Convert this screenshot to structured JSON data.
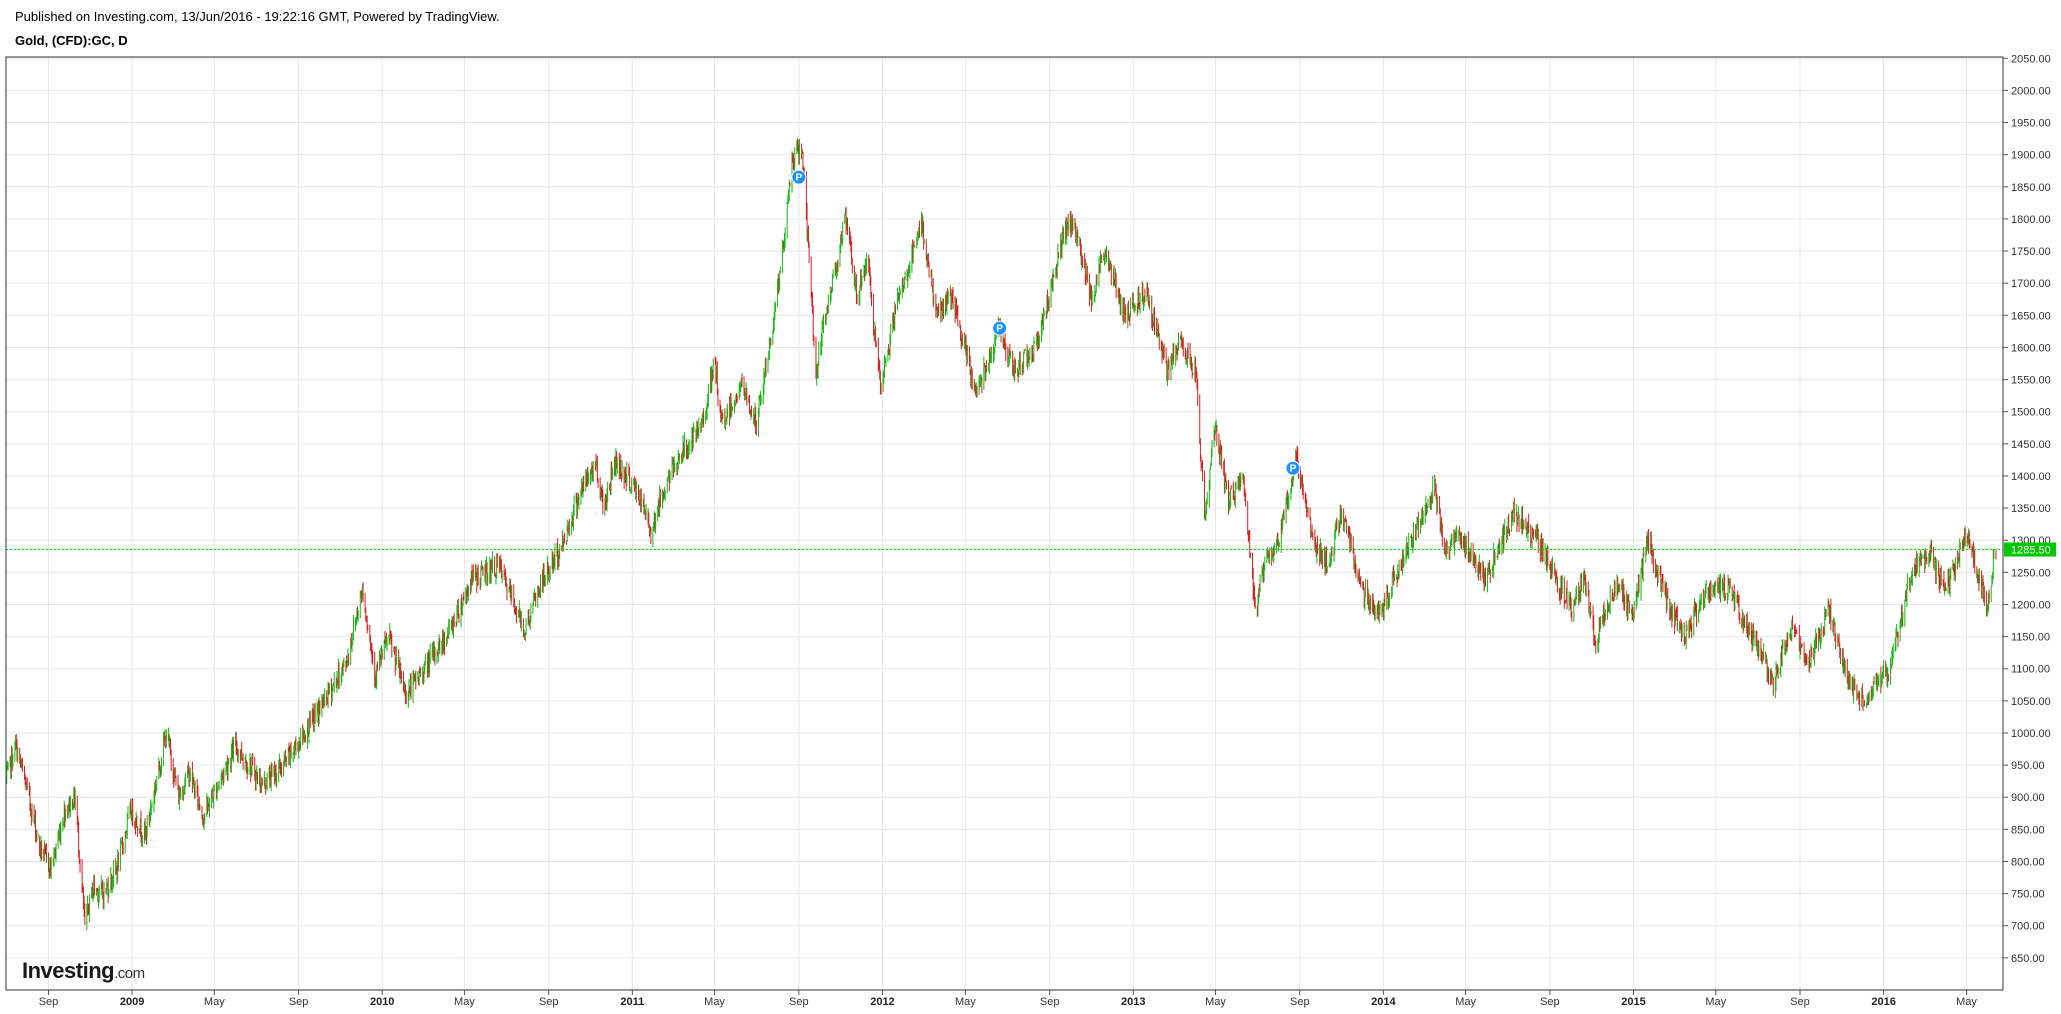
{
  "header": {
    "published": "Published on Investing.com, 13/Jun/2016 - 19:22:16 GMT, Powered by TradingView.",
    "symbol": "Gold, (CFD):GC, D"
  },
  "logo": {
    "brand": "Investing",
    "suffix": ".com"
  },
  "colors": {
    "up": "#16b816",
    "down": "#d62020",
    "grid": "#e6e6e6",
    "frame": "#333333",
    "price_line": "#00e000",
    "price_badge": "#00c800",
    "marker": "#1e90ff"
  },
  "chart_data": {
    "type": "line",
    "style": "daily OHLC bars, green up / red down",
    "grid": true,
    "x_range": [
      "2008-07-01",
      "2016-06-13"
    ],
    "ylim": [
      600,
      2052
    ],
    "y_ticks": [
      650,
      700,
      750,
      800,
      850,
      900,
      950,
      1000,
      1050,
      1100,
      1150,
      1200,
      1250,
      1300,
      1350,
      1400,
      1450,
      1500,
      1550,
      1600,
      1650,
      1700,
      1750,
      1800,
      1850,
      1900,
      1950,
      2000,
      2050
    ],
    "y_tick_labels": [
      "650.00",
      "700.00",
      "750.00",
      "800.00",
      "850.00",
      "900.00",
      "950.00",
      "1000.00",
      "1050.00",
      "1100.00",
      "1150.00",
      "1200.00",
      "1250.00",
      "1300.00",
      "1350.00",
      "1400.00",
      "1450.00",
      "1500.00",
      "1550.00",
      "1600.00",
      "1650.00",
      "1700.00",
      "1750.00",
      "1800.00",
      "1850.00",
      "1900.00",
      "1950.00",
      "2000.00",
      "2050.00"
    ],
    "x_ticks": [
      {
        "date": "2008-09-01",
        "label": "Sep",
        "bold": false
      },
      {
        "date": "2009-01-01",
        "label": "2009",
        "bold": true
      },
      {
        "date": "2009-05-01",
        "label": "May",
        "bold": false
      },
      {
        "date": "2009-09-01",
        "label": "Sep",
        "bold": false
      },
      {
        "date": "2010-01-01",
        "label": "2010",
        "bold": true
      },
      {
        "date": "2010-05-01",
        "label": "May",
        "bold": false
      },
      {
        "date": "2010-09-01",
        "label": "Sep",
        "bold": false
      },
      {
        "date": "2011-01-01",
        "label": "2011",
        "bold": true
      },
      {
        "date": "2011-05-01",
        "label": "May",
        "bold": false
      },
      {
        "date": "2011-09-01",
        "label": "Sep",
        "bold": false
      },
      {
        "date": "2012-01-01",
        "label": "2012",
        "bold": true
      },
      {
        "date": "2012-05-01",
        "label": "May",
        "bold": false
      },
      {
        "date": "2012-09-01",
        "label": "Sep",
        "bold": false
      },
      {
        "date": "2013-01-01",
        "label": "2013",
        "bold": true
      },
      {
        "date": "2013-05-01",
        "label": "May",
        "bold": false
      },
      {
        "date": "2013-09-01",
        "label": "Sep",
        "bold": false
      },
      {
        "date": "2014-01-01",
        "label": "2014",
        "bold": true
      },
      {
        "date": "2014-05-01",
        "label": "May",
        "bold": false
      },
      {
        "date": "2014-09-01",
        "label": "Sep",
        "bold": false
      },
      {
        "date": "2015-01-01",
        "label": "2015",
        "bold": true
      },
      {
        "date": "2015-05-01",
        "label": "May",
        "bold": false
      },
      {
        "date": "2015-09-01",
        "label": "Sep",
        "bold": false
      },
      {
        "date": "2016-01-01",
        "label": "2016",
        "bold": true
      },
      {
        "date": "2016-05-01",
        "label": "May",
        "bold": false
      }
    ],
    "current_price": 1285.5,
    "current_price_label": "1285.50",
    "markers": [
      {
        "date": "2011-09-01",
        "price": 1865,
        "label": "P"
      },
      {
        "date": "2012-06-20",
        "price": 1630,
        "label": "P"
      },
      {
        "date": "2013-08-22",
        "price": 1412,
        "label": "P"
      }
    ],
    "series": [
      {
        "points": [
          [
            "2008-07-01",
            925
          ],
          [
            "2008-07-15",
            980
          ],
          [
            "2008-08-01",
            910
          ],
          [
            "2008-08-20",
            820
          ],
          [
            "2008-09-05",
            790
          ],
          [
            "2008-09-25",
            880
          ],
          [
            "2008-10-10",
            900
          ],
          [
            "2008-10-24",
            700
          ],
          [
            "2008-11-05",
            760
          ],
          [
            "2008-11-21",
            750
          ],
          [
            "2008-12-10",
            790
          ],
          [
            "2008-12-30",
            880
          ],
          [
            "2009-01-20",
            840
          ],
          [
            "2009-02-20",
            1000
          ],
          [
            "2009-03-10",
            900
          ],
          [
            "2009-03-25",
            940
          ],
          [
            "2009-04-15",
            870
          ],
          [
            "2009-06-01",
            980
          ],
          [
            "2009-07-10",
            920
          ],
          [
            "2009-08-10",
            950
          ],
          [
            "2009-09-10",
            1000
          ],
          [
            "2009-10-14",
            1060
          ],
          [
            "2009-11-10",
            1110
          ],
          [
            "2009-12-03",
            1225
          ],
          [
            "2009-12-22",
            1090
          ],
          [
            "2010-01-10",
            1150
          ],
          [
            "2010-02-05",
            1060
          ],
          [
            "2010-03-10",
            1110
          ],
          [
            "2010-04-10",
            1160
          ],
          [
            "2010-05-12",
            1240
          ],
          [
            "2010-06-20",
            1260
          ],
          [
            "2010-07-28",
            1160
          ],
          [
            "2010-08-20",
            1230
          ],
          [
            "2010-09-20",
            1290
          ],
          [
            "2010-10-15",
            1370
          ],
          [
            "2010-11-09",
            1420
          ],
          [
            "2010-11-20",
            1350
          ],
          [
            "2010-12-07",
            1425
          ],
          [
            "2011-01-10",
            1370
          ],
          [
            "2011-01-28",
            1315
          ],
          [
            "2011-02-20",
            1390
          ],
          [
            "2011-03-10",
            1430
          ],
          [
            "2011-04-10",
            1470
          ],
          [
            "2011-05-02",
            1575
          ],
          [
            "2011-05-10",
            1480
          ],
          [
            "2011-06-10",
            1540
          ],
          [
            "2011-07-01",
            1480
          ],
          [
            "2011-07-20",
            1600
          ],
          [
            "2011-08-10",
            1760
          ],
          [
            "2011-08-22",
            1890
          ],
          [
            "2011-09-06",
            1910
          ],
          [
            "2011-09-26",
            1560
          ],
          [
            "2011-10-10",
            1650
          ],
          [
            "2011-11-08",
            1800
          ],
          [
            "2011-11-25",
            1680
          ],
          [
            "2011-12-10",
            1740
          ],
          [
            "2011-12-29",
            1530
          ],
          [
            "2012-01-20",
            1660
          ],
          [
            "2012-02-28",
            1790
          ],
          [
            "2012-03-20",
            1650
          ],
          [
            "2012-04-10",
            1680
          ],
          [
            "2012-05-16",
            1530
          ],
          [
            "2012-06-20",
            1630
          ],
          [
            "2012-07-10",
            1560
          ],
          [
            "2012-08-15",
            1610
          ],
          [
            "2012-09-20",
            1770
          ],
          [
            "2012-10-05",
            1795
          ],
          [
            "2012-11-01",
            1680
          ],
          [
            "2012-11-20",
            1750
          ],
          [
            "2012-12-20",
            1650
          ],
          [
            "2013-01-20",
            1690
          ],
          [
            "2013-02-20",
            1560
          ],
          [
            "2013-03-10",
            1610
          ],
          [
            "2013-04-03",
            1560
          ],
          [
            "2013-04-15",
            1330
          ],
          [
            "2013-04-30",
            1480
          ],
          [
            "2013-05-20",
            1360
          ],
          [
            "2013-06-10",
            1400
          ],
          [
            "2013-06-28",
            1185
          ],
          [
            "2013-07-10",
            1260
          ],
          [
            "2013-08-01",
            1300
          ],
          [
            "2013-08-28",
            1430
          ],
          [
            "2013-09-20",
            1300
          ],
          [
            "2013-10-15",
            1260
          ],
          [
            "2013-11-01",
            1350
          ],
          [
            "2013-12-01",
            1220
          ],
          [
            "2013-12-31",
            1185
          ],
          [
            "2014-01-20",
            1250
          ],
          [
            "2014-02-15",
            1310
          ],
          [
            "2014-03-17",
            1390
          ],
          [
            "2014-03-31",
            1280
          ],
          [
            "2014-04-20",
            1310
          ],
          [
            "2014-05-30",
            1240
          ],
          [
            "2014-06-15",
            1280
          ],
          [
            "2014-07-10",
            1340
          ],
          [
            "2014-08-10",
            1310
          ],
          [
            "2014-09-10",
            1240
          ],
          [
            "2014-10-05",
            1190
          ],
          [
            "2014-10-20",
            1250
          ],
          [
            "2014-11-07",
            1140
          ],
          [
            "2014-11-20",
            1190
          ],
          [
            "2014-12-10",
            1230
          ],
          [
            "2014-12-31",
            1180
          ],
          [
            "2015-01-22",
            1305
          ],
          [
            "2015-02-10",
            1230
          ],
          [
            "2015-03-17",
            1145
          ],
          [
            "2015-04-10",
            1210
          ],
          [
            "2015-05-18",
            1230
          ],
          [
            "2015-06-10",
            1180
          ],
          [
            "2015-07-24",
            1080
          ],
          [
            "2015-08-24",
            1170
          ],
          [
            "2015-09-10",
            1100
          ],
          [
            "2015-10-14",
            1190
          ],
          [
            "2015-11-10",
            1080
          ],
          [
            "2015-12-03",
            1050
          ],
          [
            "2015-12-20",
            1070
          ],
          [
            "2016-01-10",
            1100
          ],
          [
            "2016-02-11",
            1250
          ],
          [
            "2016-03-10",
            1280
          ],
          [
            "2016-03-30",
            1220
          ],
          [
            "2016-05-02",
            1305
          ],
          [
            "2016-05-31",
            1200
          ],
          [
            "2016-06-13",
            1285.5
          ]
        ]
      }
    ]
  }
}
